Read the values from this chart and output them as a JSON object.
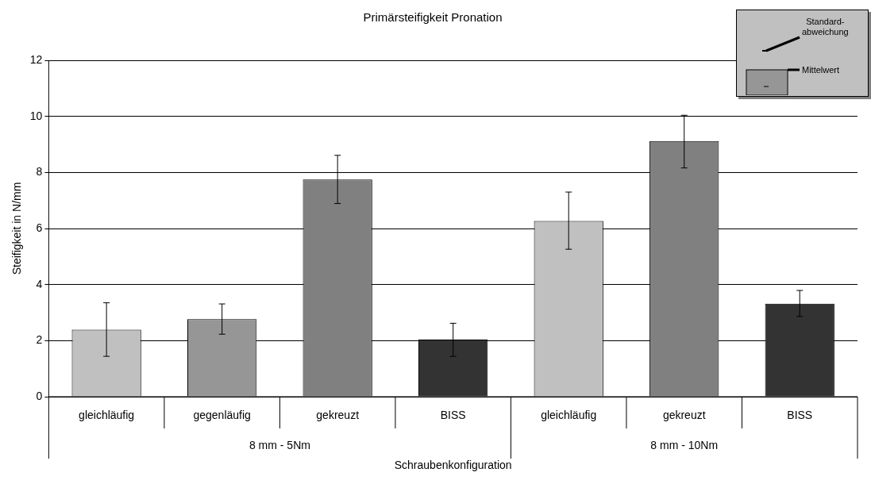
{
  "chart_data": {
    "type": "bar",
    "title": "Primärsteifigkeit Pronation",
    "xlabel": "Schraubenkonfiguration",
    "ylabel": "Steifigkeit in N/mm",
    "categories": [
      "gleichläufig",
      "gegenläufig",
      "gekreuzt",
      "BISS",
      "gleichläufig",
      "gekreuzt",
      "BISS"
    ],
    "values": [
      2.39,
      2.77,
      7.75,
      2.04,
      6.27,
      9.12,
      3.32
    ],
    "colors": [
      "#c0c0c0",
      "#969696",
      "#808080",
      "#333333",
      "#c0c0c0",
      "#808080",
      "#333333"
    ],
    "errors": [
      [
        1.44,
        3.35
      ],
      [
        2.23,
        3.31
      ],
      [
        6.89,
        8.61
      ],
      [
        1.44,
        2.62
      ],
      [
        5.26,
        7.3
      ],
      [
        8.16,
        10.04
      ],
      [
        2.86,
        3.79
      ]
    ],
    "ylim": [
      0,
      12
    ],
    "yticks": [
      0,
      2,
      4,
      6,
      8,
      10,
      12
    ],
    "grid": "y",
    "annotations": [
      "8 mm - 5Nm",
      "8 mm - 10Nm",
      "Standard-\nabweichung",
      "Mittelwert"
    ]
  }
}
